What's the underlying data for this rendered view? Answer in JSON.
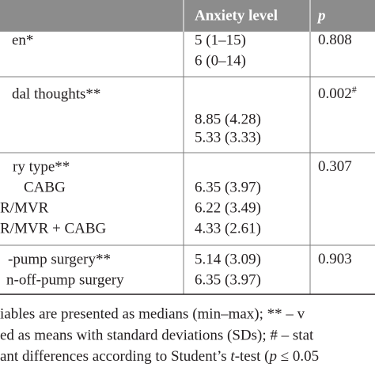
{
  "table": {
    "header": [
      "Anxiety level",
      "p"
    ],
    "rows": [
      {
        "label": [
          "en*",
          ""
        ],
        "values": [
          "5 (1–15)",
          "6 (0–14)"
        ],
        "p": "0.808"
      },
      {
        "label": [
          "dal thoughts**",
          "",
          ""
        ],
        "values": [
          "",
          "8.85 (4.28)",
          "5.33 (3.33)"
        ],
        "p": "0.002",
        "p_mark": "#"
      },
      {
        "label": [
          "ry type**",
          "CABG",
          "R/MVR",
          "R/MVR + CABG"
        ],
        "values": [
          "",
          "6.35 (3.97)",
          "6.22 (3.49)",
          "4.33 (2.61)"
        ],
        "p": "0.307"
      },
      {
        "label": [
          "-pump surgery**",
          "n-off-pump surgery"
        ],
        "values": [
          "5.14 (3.09)",
          "6.35 (3.97)"
        ],
        "p": "0.903"
      }
    ]
  },
  "footnote": {
    "line1": "iables are presented as medians (min–max); ** – v",
    "line2": "ed as means with standard deviations (SDs); # – stat",
    "line3": [
      "ant differences according to Student’s ",
      "t",
      "-test (",
      "p",
      " ≤ 0.05"
    ]
  }
}
